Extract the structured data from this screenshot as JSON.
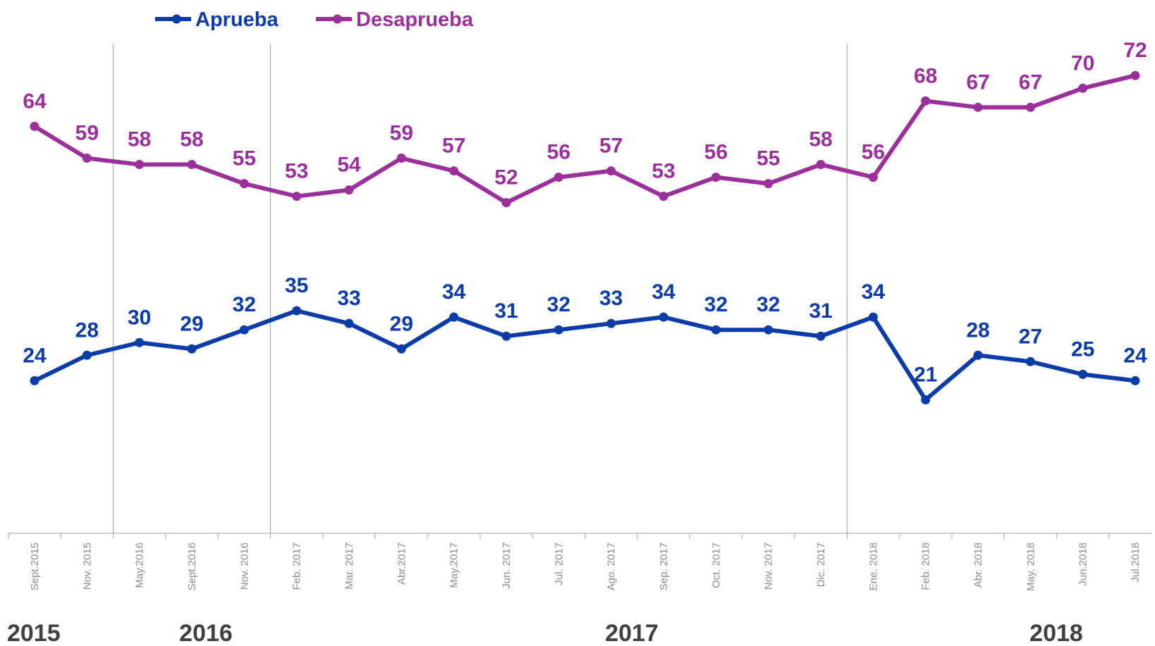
{
  "chart_data": {
    "type": "line",
    "categories": [
      "Sept.2015",
      "Nov. 2015",
      "May.2016",
      "Sept.2016",
      "Nov. 2016",
      "Feb. 2017",
      "Mar. 2017",
      "Abr.2017",
      "May.2017",
      "Jun. 2017",
      "Jul. 2017",
      "Ago. 2017",
      "Sep. 2017",
      "Oct. 2017",
      "Nov. 2017",
      "Dic. 2017",
      "Ene. 2018",
      "Feb. 2018",
      "Abr. 2018",
      "May. 2018",
      "Jun.2018",
      "Jul.2018"
    ],
    "series": [
      {
        "name": "Aprueba",
        "color": "#0b3ca8",
        "values": [
          24,
          28,
          30,
          29,
          32,
          35,
          33,
          29,
          34,
          31,
          32,
          33,
          34,
          32,
          32,
          31,
          34,
          21,
          28,
          27,
          25,
          24
        ]
      },
      {
        "name": "Desaprueba",
        "color": "#9b2f9b",
        "values": [
          64,
          59,
          58,
          58,
          55,
          53,
          54,
          59,
          57,
          52,
          56,
          57,
          53,
          56,
          55,
          58,
          56,
          68,
          67,
          67,
          70,
          72
        ]
      }
    ],
    "years": [
      "2015",
      "2016",
      "2017",
      "2018"
    ],
    "ylim": [
      0,
      80
    ],
    "legend": "top-left"
  }
}
